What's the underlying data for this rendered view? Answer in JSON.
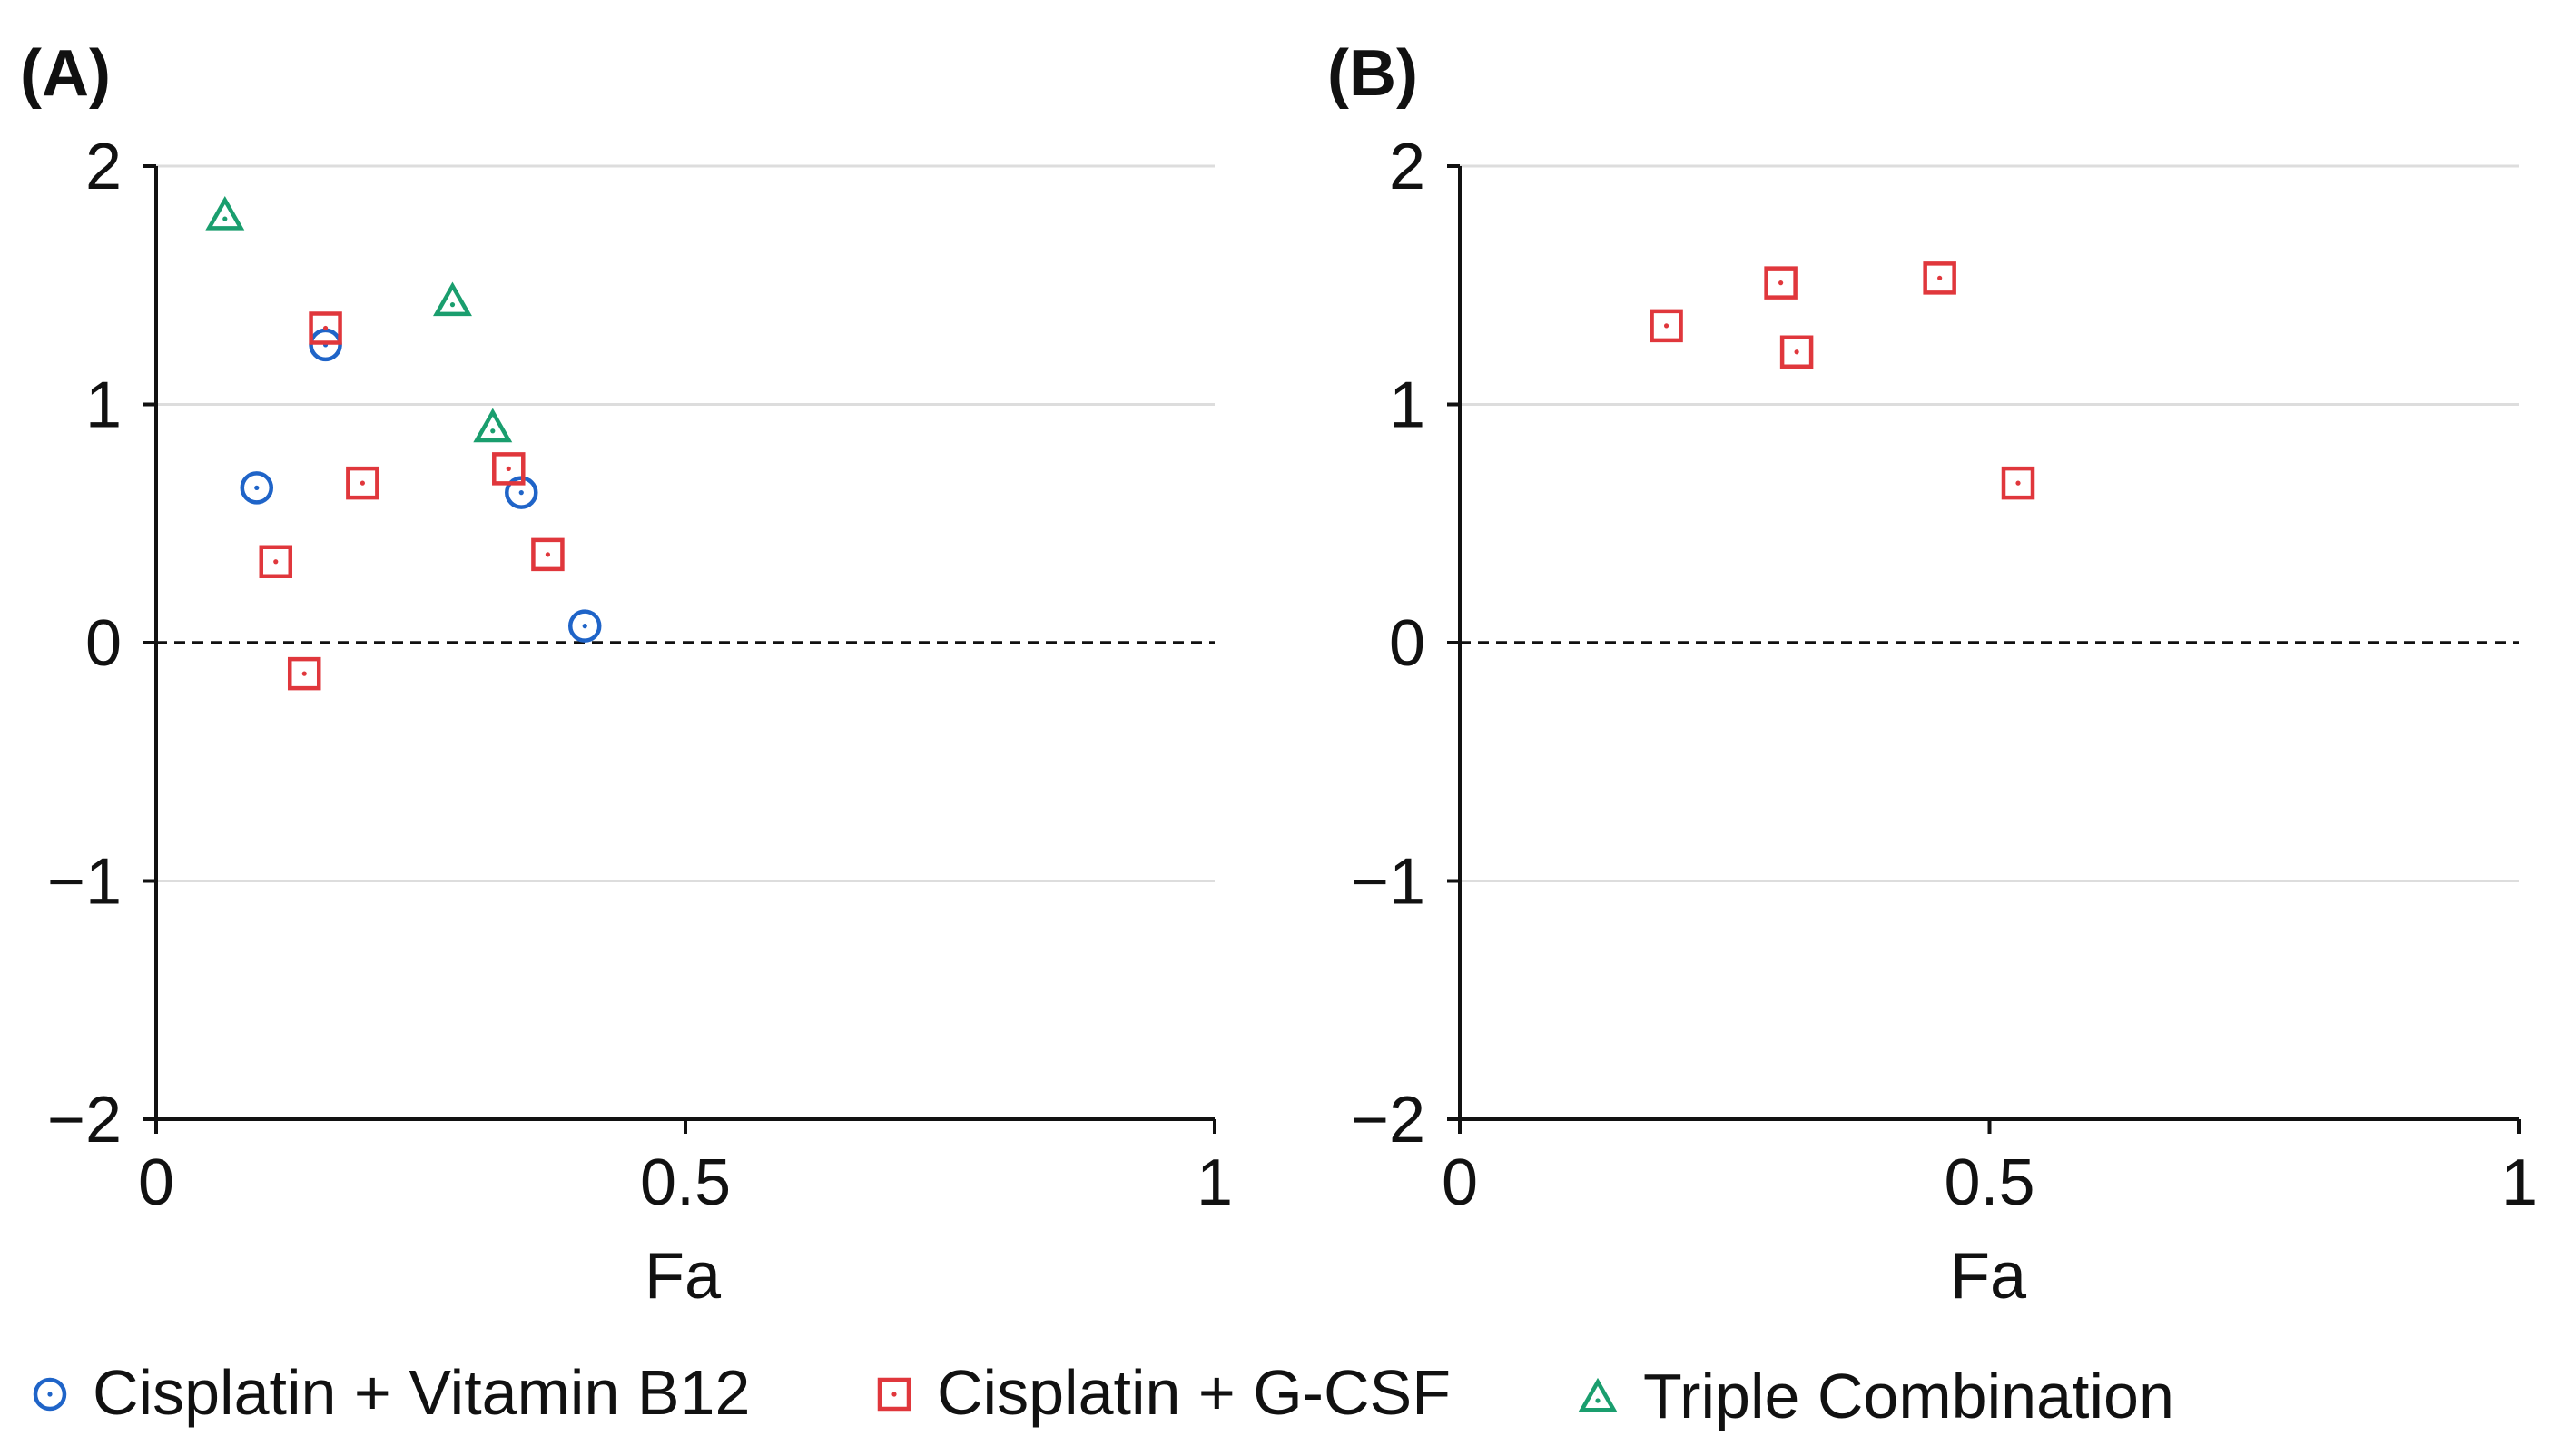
{
  "colors": {
    "Cisplatin + Vitamin B12": "#1f64c8",
    "Cisplatin + G-CSF": "#e0373c",
    "Triple Combination": "#1a9e6e",
    "grid": "#dddddd",
    "axis": "#111111"
  },
  "legend": [
    {
      "name": "Cisplatin + Vitamin B12",
      "marker": "circle"
    },
    {
      "name": "Cisplatin + G-CSF",
      "marker": "square"
    },
    {
      "name": "Triple Combination",
      "marker": "triangle"
    }
  ],
  "chart_data": [
    {
      "panel": "(A)",
      "type": "scatter",
      "xlabel": "Fa",
      "ylabel": "",
      "xlim": [
        0,
        1
      ],
      "ylim": [
        -2,
        2
      ],
      "xticks": [
        "0",
        "0.5",
        "1"
      ],
      "yticks": [
        "2",
        "1",
        "0",
        "−1",
        "−2"
      ],
      "grid": "horizontal",
      "reference_line": {
        "y": 0,
        "style": "dashed"
      },
      "series": [
        {
          "name": "Cisplatin + Vitamin B12",
          "marker": "circle",
          "points": [
            [
              0.095,
              0.65
            ],
            [
              0.16,
              1.25
            ],
            [
              0.345,
              0.63
            ],
            [
              0.405,
              0.07
            ]
          ]
        },
        {
          "name": "Cisplatin + G-CSF",
          "marker": "square",
          "points": [
            [
              0.16,
              1.32
            ],
            [
              0.195,
              0.67
            ],
            [
              0.113,
              0.34
            ],
            [
              0.14,
              -0.13
            ],
            [
              0.333,
              0.73
            ],
            [
              0.37,
              0.37
            ]
          ]
        },
        {
          "name": "Triple Combination",
          "marker": "triangle",
          "points": [
            [
              0.065,
              1.79
            ],
            [
              0.28,
              1.43
            ],
            [
              0.318,
              0.9
            ]
          ]
        }
      ]
    },
    {
      "panel": "(B)",
      "type": "scatter",
      "xlabel": "Fa",
      "ylabel": "",
      "xlim": [
        0,
        1
      ],
      "ylim": [
        -2,
        2
      ],
      "xticks": [
        "0",
        "0.5",
        "1"
      ],
      "yticks": [
        "2",
        "1",
        "0",
        "−1",
        "−2"
      ],
      "grid": "horizontal",
      "reference_line": {
        "y": 0,
        "style": "dashed"
      },
      "series": [
        {
          "name": "Cisplatin + G-CSF",
          "marker": "square",
          "points": [
            [
              0.195,
              1.33
            ],
            [
              0.303,
              1.51
            ],
            [
              0.318,
              1.22
            ],
            [
              0.453,
              1.53
            ],
            [
              0.527,
              0.67
            ]
          ]
        }
      ]
    }
  ]
}
